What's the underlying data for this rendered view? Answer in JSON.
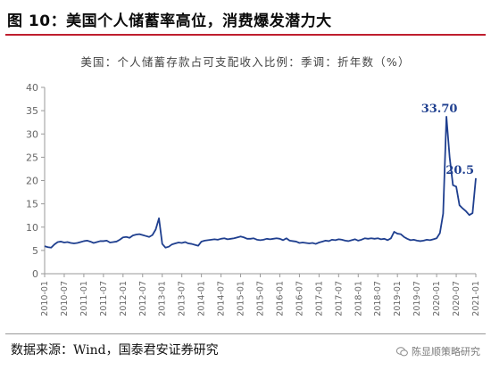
{
  "figure": {
    "title": "图 10：美国个人储蓄率高位，消费爆发潜力大",
    "source": "数据来源：Wind，国泰君安证券研究",
    "watermark": "陈显顺策略研究",
    "watermark_icon": "wechat-icon"
  },
  "colors": {
    "line": "#1f3f8f",
    "axis": "#9a9a9a",
    "rule": "#bf1e2e",
    "label": "#1f3f8f"
  },
  "chart_data": {
    "type": "line",
    "title": "美国：个人储蓄存款占可支配收入比例：季调：折年数（%）",
    "xlabel": "",
    "ylabel": "",
    "ylim": [
      0,
      40
    ],
    "yticks": [
      0,
      5,
      10,
      15,
      20,
      25,
      30,
      35,
      40
    ],
    "xticks": [
      "2010-01",
      "2010-07",
      "2011-01",
      "2011-07",
      "2012-01",
      "2012-07",
      "2013-01",
      "2013-07",
      "2014-01",
      "2014-07",
      "2015-01",
      "2015-07",
      "2016-01",
      "2016-07",
      "2017-01",
      "2017-07",
      "2018-01",
      "2018-07",
      "2019-01",
      "2019-07",
      "2020-01",
      "2020-07",
      "2021-01"
    ],
    "grid": false,
    "legend": "none",
    "annotations": [
      {
        "text": "33.70",
        "x": "2020-04",
        "y": 33.7
      },
      {
        "text": "20.5",
        "x": "2021-01",
        "y": 20.5
      }
    ],
    "series": [
      {
        "values": [
          [
            "2010-01",
            5.9
          ],
          [
            "2010-02",
            5.7
          ],
          [
            "2010-03",
            5.6
          ],
          [
            "2010-04",
            6.3
          ],
          [
            "2010-05",
            6.8
          ],
          [
            "2010-06",
            6.9
          ],
          [
            "2010-07",
            6.7
          ],
          [
            "2010-08",
            6.8
          ],
          [
            "2010-09",
            6.6
          ],
          [
            "2010-10",
            6.5
          ],
          [
            "2010-11",
            6.6
          ],
          [
            "2010-12",
            6.8
          ],
          [
            "2011-01",
            7.0
          ],
          [
            "2011-02",
            7.1
          ],
          [
            "2011-03",
            6.9
          ],
          [
            "2011-04",
            6.6
          ],
          [
            "2011-05",
            6.8
          ],
          [
            "2011-06",
            7.0
          ],
          [
            "2011-07",
            7.0
          ],
          [
            "2011-08",
            7.1
          ],
          [
            "2011-09",
            6.7
          ],
          [
            "2011-10",
            6.8
          ],
          [
            "2011-11",
            6.9
          ],
          [
            "2011-12",
            7.3
          ],
          [
            "2012-01",
            7.8
          ],
          [
            "2012-02",
            7.9
          ],
          [
            "2012-03",
            7.7
          ],
          [
            "2012-04",
            8.2
          ],
          [
            "2012-05",
            8.4
          ],
          [
            "2012-06",
            8.5
          ],
          [
            "2012-07",
            8.3
          ],
          [
            "2012-08",
            8.1
          ],
          [
            "2012-09",
            7.9
          ],
          [
            "2012-10",
            8.3
          ],
          [
            "2012-11",
            9.5
          ],
          [
            "2012-12",
            11.9
          ],
          [
            "2013-01",
            6.4
          ],
          [
            "2013-02",
            5.6
          ],
          [
            "2013-03",
            5.8
          ],
          [
            "2013-04",
            6.3
          ],
          [
            "2013-05",
            6.5
          ],
          [
            "2013-06",
            6.7
          ],
          [
            "2013-07",
            6.6
          ],
          [
            "2013-08",
            6.8
          ],
          [
            "2013-09",
            6.5
          ],
          [
            "2013-10",
            6.4
          ],
          [
            "2013-11",
            6.2
          ],
          [
            "2013-12",
            6.0
          ],
          [
            "2014-01",
            6.9
          ],
          [
            "2014-02",
            7.1
          ],
          [
            "2014-03",
            7.2
          ],
          [
            "2014-04",
            7.3
          ],
          [
            "2014-05",
            7.4
          ],
          [
            "2014-06",
            7.3
          ],
          [
            "2014-07",
            7.5
          ],
          [
            "2014-08",
            7.6
          ],
          [
            "2014-09",
            7.4
          ],
          [
            "2014-10",
            7.5
          ],
          [
            "2014-11",
            7.6
          ],
          [
            "2014-12",
            7.8
          ],
          [
            "2015-01",
            8.0
          ],
          [
            "2015-02",
            7.8
          ],
          [
            "2015-03",
            7.5
          ],
          [
            "2015-04",
            7.5
          ],
          [
            "2015-05",
            7.6
          ],
          [
            "2015-06",
            7.3
          ],
          [
            "2015-07",
            7.2
          ],
          [
            "2015-08",
            7.3
          ],
          [
            "2015-09",
            7.5
          ],
          [
            "2015-10",
            7.4
          ],
          [
            "2015-11",
            7.5
          ],
          [
            "2015-12",
            7.6
          ],
          [
            "2016-01",
            7.5
          ],
          [
            "2016-02",
            7.2
          ],
          [
            "2016-03",
            7.6
          ],
          [
            "2016-04",
            7.1
          ],
          [
            "2016-05",
            7.0
          ],
          [
            "2016-06",
            6.9
          ],
          [
            "2016-07",
            6.6
          ],
          [
            "2016-08",
            6.7
          ],
          [
            "2016-09",
            6.6
          ],
          [
            "2016-10",
            6.5
          ],
          [
            "2016-11",
            6.6
          ],
          [
            "2016-12",
            6.4
          ],
          [
            "2017-01",
            6.7
          ],
          [
            "2017-02",
            6.9
          ],
          [
            "2017-03",
            7.1
          ],
          [
            "2017-04",
            7.0
          ],
          [
            "2017-05",
            7.3
          ],
          [
            "2017-06",
            7.2
          ],
          [
            "2017-07",
            7.4
          ],
          [
            "2017-08",
            7.3
          ],
          [
            "2017-09",
            7.1
          ],
          [
            "2017-10",
            7.0
          ],
          [
            "2017-11",
            7.2
          ],
          [
            "2017-12",
            7.4
          ],
          [
            "2018-01",
            7.1
          ],
          [
            "2018-02",
            7.3
          ],
          [
            "2018-03",
            7.6
          ],
          [
            "2018-04",
            7.5
          ],
          [
            "2018-05",
            7.6
          ],
          [
            "2018-06",
            7.5
          ],
          [
            "2018-07",
            7.6
          ],
          [
            "2018-08",
            7.4
          ],
          [
            "2018-09",
            7.5
          ],
          [
            "2018-10",
            7.2
          ],
          [
            "2018-11",
            7.6
          ],
          [
            "2018-12",
            9.0
          ],
          [
            "2019-01",
            8.6
          ],
          [
            "2019-02",
            8.5
          ],
          [
            "2019-03",
            7.9
          ],
          [
            "2019-04",
            7.5
          ],
          [
            "2019-05",
            7.2
          ],
          [
            "2019-06",
            7.3
          ],
          [
            "2019-07",
            7.1
          ],
          [
            "2019-08",
            7.0
          ],
          [
            "2019-09",
            7.1
          ],
          [
            "2019-10",
            7.3
          ],
          [
            "2019-11",
            7.2
          ],
          [
            "2019-12",
            7.4
          ],
          [
            "2020-01",
            7.6
          ],
          [
            "2020-02",
            8.7
          ],
          [
            "2020-03",
            12.9
          ],
          [
            "2020-04",
            33.7
          ],
          [
            "2020-05",
            24.9
          ],
          [
            "2020-06",
            19.0
          ],
          [
            "2020-07",
            18.7
          ],
          [
            "2020-08",
            14.7
          ],
          [
            "2020-09",
            14.0
          ],
          [
            "2020-10",
            13.4
          ],
          [
            "2020-11",
            12.6
          ],
          [
            "2020-12",
            13.0
          ],
          [
            "2021-01",
            20.5
          ]
        ]
      }
    ]
  }
}
